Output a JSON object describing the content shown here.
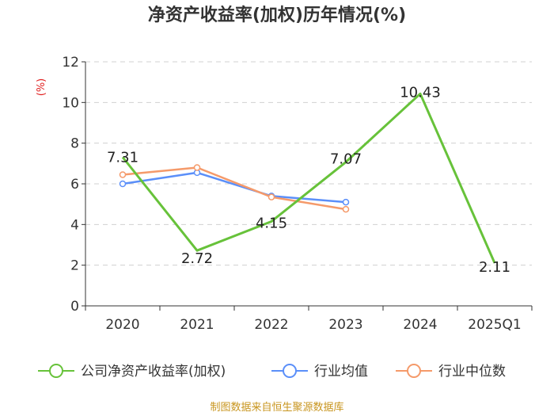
{
  "chart_data": {
    "type": "line",
    "title": "净资产收益率(加权)历年情况(%)",
    "y_unit_label": "(%)",
    "categories": [
      "2020",
      "2021",
      "2022",
      "2023",
      "2024",
      "2025Q1"
    ],
    "ylim": [
      0,
      12
    ],
    "yticks": [
      0,
      2,
      4,
      6,
      8,
      10,
      12
    ],
    "grid": true,
    "legend_position": "bottom",
    "series": [
      {
        "name": "公司净资产收益率(加权)",
        "color": "#67c23a",
        "values": [
          7.31,
          2.72,
          4.15,
          7.07,
          10.43,
          2.11
        ],
        "labels": [
          "7.31",
          "2.72",
          "4.15",
          "7.07",
          "10.43",
          "2.11"
        ]
      },
      {
        "name": "行业均值",
        "color": "#5b8ff9",
        "values": [
          6.0,
          6.55,
          5.4,
          5.1,
          null,
          null
        ]
      },
      {
        "name": "行业中位数",
        "color": "#f59a6a",
        "values": [
          6.45,
          6.8,
          5.35,
          4.75,
          null,
          null
        ]
      }
    ]
  },
  "source": "制图数据来自恒生聚源数据库"
}
